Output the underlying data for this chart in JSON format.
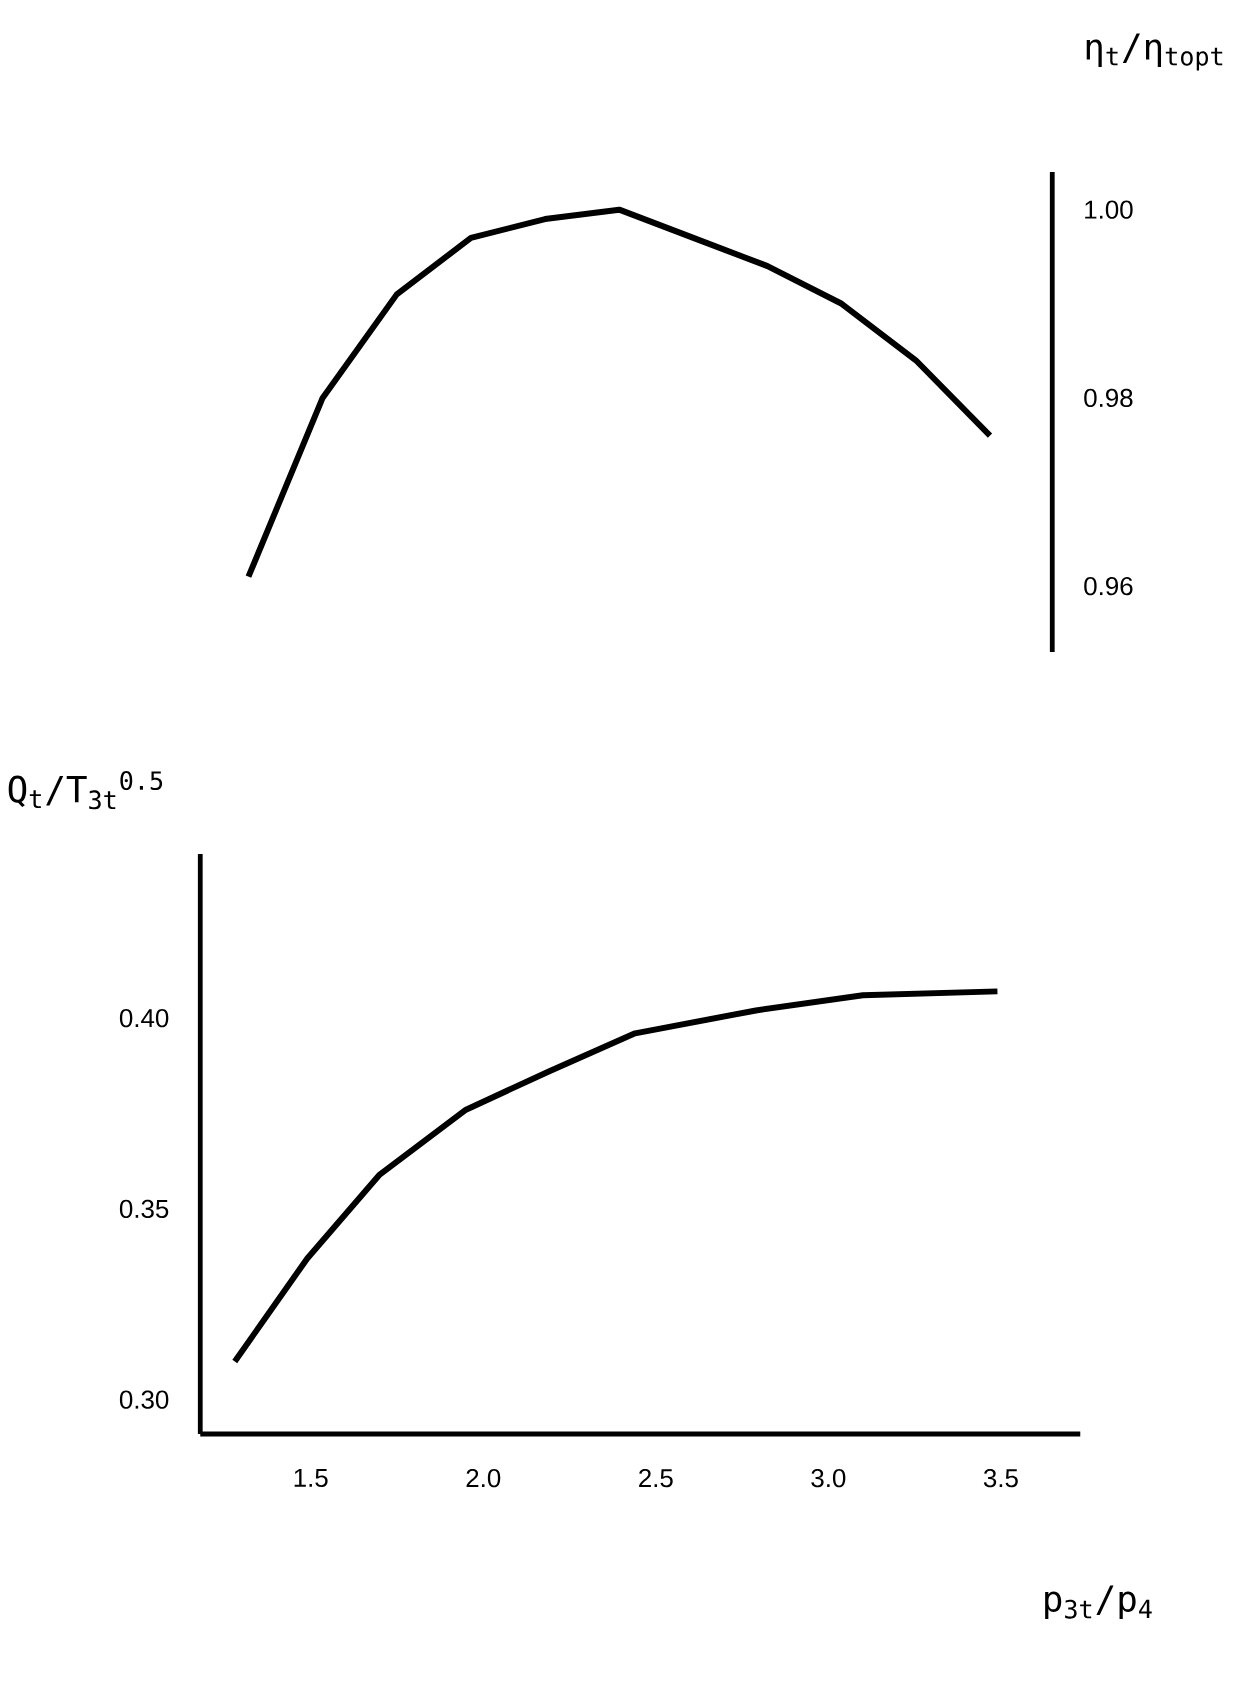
{
  "chart_data": [
    {
      "type": "line",
      "ylabel": "η$_{t}$/η$_{topt}$",
      "tick_labels": "y",
      "categories": [
        null,
        null,
        null,
        null,
        null,
        null,
        null,
        null,
        null,
        null,
        null
      ],
      "series": [
        {
          "color": "#000000",
          "values": [
            0.961,
            0.98,
            0.991,
            0.997,
            0.999,
            1.0,
            0.997,
            0.994,
            0.99,
            0.984,
            0.976
          ]
        }
      ],
      "ylim": [
        0.953,
        1.004
      ],
      "yticks": [
        {
          "value": 1.0,
          "label": "1.00"
        },
        0.98,
        0.96
      ]
    },
    {
      "type": "line",
      "xlabel": "p$_{3t}$/p$_{4}$",
      "ylabel": "Q$_{t}$/T$_{3t}$$^{0.5}$",
      "x": [
        1.28,
        1.49,
        1.7,
        1.95,
        2.19,
        2.44,
        2.79,
        3.1,
        3.49
      ],
      "series": [
        {
          "color": "#000000",
          "values": [
            0.31,
            0.337,
            0.359,
            0.376,
            0.386,
            0.396,
            0.402,
            0.406,
            0.407
          ]
        }
      ],
      "xlim": [
        1.18,
        3.73
      ],
      "ylim": [
        0.291,
        0.443
      ],
      "xticks": [
        1.5,
        {
          "value": 2.0,
          "label": "2.0"
        },
        2.5,
        {
          "value": 3.0,
          "label": "3.0"
        },
        3.5
      ],
      "yticks": [
        {
          "value": 0.3,
          "label": "0.30"
        },
        0.35,
        {
          "value": 0.4,
          "label": "0.40"
        }
      ]
    }
  ]
}
